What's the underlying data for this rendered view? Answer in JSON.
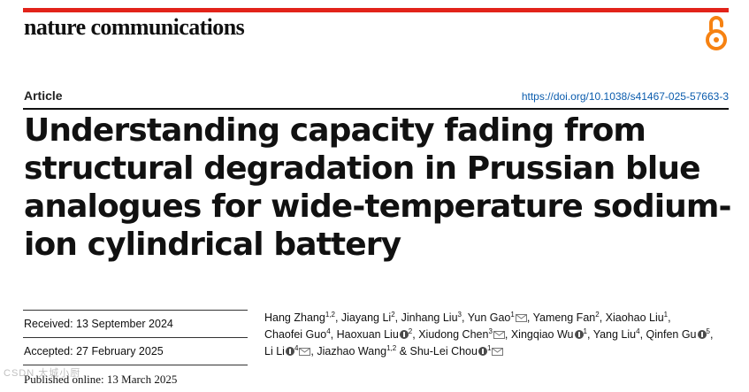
{
  "header": {
    "journal_name": "nature communications",
    "open_access_icon": "open-access-lock-icon",
    "accent_color": "#e2231a"
  },
  "article": {
    "type": "Article",
    "doi": "https://doi.org/10.1038/s41467-025-57663-3",
    "title": "Understanding capacity fading from structural degradation in Prussian blue analogues for wide-temperature sodium-ion cylindrical battery"
  },
  "dates": {
    "received": "Received: 13 September 2024",
    "accepted": "Accepted: 27 February 2025",
    "published": "Published online: 13 March 2025"
  },
  "authors": [
    {
      "name": "Hang Zhang",
      "sup": "1,2",
      "orcid": false,
      "mail": false
    },
    {
      "name": "Jiayang Li",
      "sup": "2",
      "orcid": false,
      "mail": false
    },
    {
      "name": "Jinhang Liu",
      "sup": "3",
      "orcid": false,
      "mail": false
    },
    {
      "name": "Yun Gao",
      "sup": "1",
      "orcid": false,
      "mail": true
    },
    {
      "name": "Yameng Fan",
      "sup": "2",
      "orcid": false,
      "mail": false
    },
    {
      "name": "Xiaohao Liu",
      "sup": "1",
      "orcid": false,
      "mail": false
    },
    {
      "name": "Chaofei Guo",
      "sup": "4",
      "orcid": false,
      "mail": false
    },
    {
      "name": "Haoxuan Liu",
      "sup": "2",
      "orcid": true,
      "mail": false
    },
    {
      "name": "Xiudong Chen",
      "sup": "3",
      "orcid": false,
      "mail": true
    },
    {
      "name": "Xingqiao Wu",
      "sup": "1",
      "orcid": true,
      "mail": false
    },
    {
      "name": "Yang Liu",
      "sup": "4",
      "orcid": false,
      "mail": false
    },
    {
      "name": "Qinfen Gu",
      "sup": "5",
      "orcid": true,
      "mail": false
    },
    {
      "name": "Li Li",
      "sup": "4",
      "orcid": true,
      "mail": true
    },
    {
      "name": "Jiazhao Wang",
      "sup": "1,2",
      "orcid": false,
      "mail": false
    },
    {
      "name": "Shu-Lei Chou",
      "sup": "1",
      "orcid": true,
      "mail": true
    }
  ],
  "watermark": "CSDN 大城小厨"
}
